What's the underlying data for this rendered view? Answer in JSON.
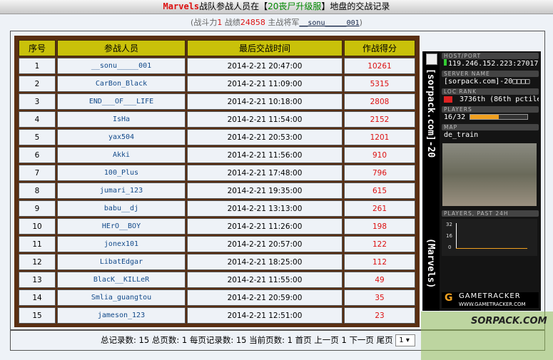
{
  "title": {
    "team": "Marvels",
    "text1": "战队参战人员在【",
    "server": "20丧尸升级服",
    "text2": "】地盘的交战记录"
  },
  "subtitle": {
    "p1": "(战斗力",
    "power": "1",
    "p2": " 战绩",
    "record": "24858",
    "p3": " 主战将军",
    "general": "__sonu_____001",
    "p4": ")"
  },
  "table": {
    "headers": [
      "序号",
      "参战人员",
      "最后交战时间",
      "作战得分"
    ],
    "rows": [
      [
        "1",
        "__sonu_____001",
        "2014-2-21 20:47:00",
        "10261"
      ],
      [
        "2",
        "CarBon_Black",
        "2014-2-21 11:09:00",
        "5315"
      ],
      [
        "3",
        "END___OF___LIFE",
        "2014-2-21 10:18:00",
        "2808"
      ],
      [
        "4",
        "IsHa",
        "2014-2-21 11:54:00",
        "2152"
      ],
      [
        "5",
        "yax504",
        "2014-2-21 20:53:00",
        "1201"
      ],
      [
        "6",
        "Akki",
        "2014-2-21 11:56:00",
        "910"
      ],
      [
        "7",
        "100_Plus",
        "2014-2-21 17:48:00",
        "796"
      ],
      [
        "8",
        "jumari_123",
        "2014-2-21 19:35:00",
        "615"
      ],
      [
        "9",
        "babu__dj",
        "2014-2-21 13:13:00",
        "261"
      ],
      [
        "10",
        "HErO__BOY",
        "2014-2-21 11:26:00",
        "198"
      ],
      [
        "11",
        "jonex101",
        "2014-2-21 20:57:00",
        "122"
      ],
      [
        "12",
        "LibatEdgar",
        "2014-2-21 18:25:00",
        "112"
      ],
      [
        "13",
        "BlacK__KILLeR",
        "2014-2-21 11:55:00",
        "49"
      ],
      [
        "14",
        "Smlia_guangtou",
        "2014-2-21 20:59:00",
        "35"
      ],
      [
        "15",
        "jameson_123",
        "2014-2-21 12:51:00",
        "23"
      ]
    ]
  },
  "gametracker": {
    "vertical_name": "[sorpack.com]-20",
    "vertical_team": "(Marvels)",
    "host_label": "HOST/PORT",
    "host": "119.246.152.223:27017",
    "name_label": "SERVER NAME",
    "name": "[sorpack.com]-20□□□□",
    "rank_label": "LOC  RANK",
    "rank": "3736th (86th pctile)",
    "players_label": "PLAYERS",
    "players": "16/32",
    "players_fraction": 0.5,
    "map_label": "MAP",
    "map": "de_train",
    "chart_label": "PLAYERS, PAST 24H",
    "chart_ticks": [
      "32",
      "16",
      "0"
    ],
    "logo": "GAMETRACKER",
    "logo_url": "WWW.GAMETRACKER.COM",
    "accent": "#f0a020"
  },
  "pager": {
    "text": "总记录数: 15 总页数: 1 每页记录数: 15 当前页数: 1 ",
    "first": "首页",
    "prev": "上一页",
    "current": "1",
    "next": "下一页",
    "last": "尾页",
    "select": "1"
  },
  "watermark": "SORPACK.COM"
}
